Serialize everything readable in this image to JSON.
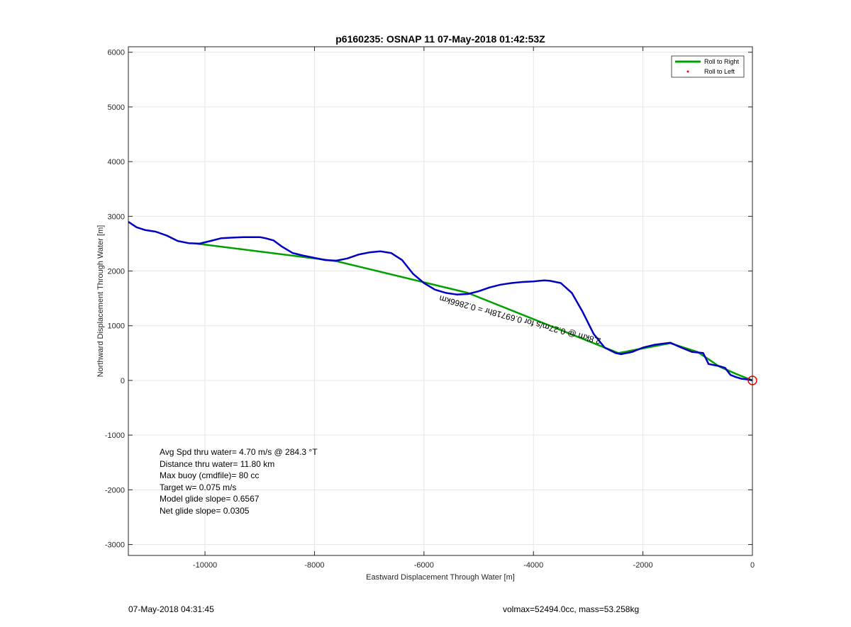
{
  "chart_data": {
    "type": "line",
    "title": "p6160235: OSNAP 11 07-May-2018 01:42:53Z",
    "xlabel": "Eastward Displacement Through Water [m]",
    "ylabel": "Northward Displacement Through Water [m]",
    "xlim": [
      -11400,
      0
    ],
    "ylim": [
      -3200,
      6100
    ],
    "xticks": [
      -10000,
      -8000,
      -6000,
      -4000,
      -2000,
      0
    ],
    "yticks": [
      -3000,
      -2000,
      -1000,
      0,
      1000,
      2000,
      3000,
      4000,
      5000,
      6000
    ],
    "grid": true,
    "legend_position": "top-right",
    "legend": [
      {
        "label": "Roll to Right",
        "color": "#00a000"
      },
      {
        "label": "Roll to Left",
        "color": "#ff0000"
      }
    ],
    "series": [
      {
        "name": "Roll to Right",
        "color": "#00a000",
        "x": [
          -10150,
          -7600,
          -5200,
          -2450,
          -1500,
          -1000,
          -600,
          -300,
          -100,
          0
        ],
        "y": [
          2500,
          2180,
          1600,
          500,
          680,
          520,
          250,
          120,
          40,
          0
        ]
      },
      {
        "color": "#0000c0",
        "x": [
          -11400,
          -11250,
          -11100,
          -10900,
          -10700,
          -10500,
          -10300,
          -10100,
          -9900,
          -9700,
          -9500,
          -9300,
          -9000,
          -8900,
          -8750,
          -8600,
          -8400,
          -8200,
          -8000,
          -7800,
          -7600,
          -7400,
          -7200,
          -7000,
          -6800,
          -6600,
          -6400,
          -6200,
          -6000,
          -5800,
          -5600,
          -5400,
          -5200,
          -5000,
          -4800,
          -4600,
          -4400,
          -4200,
          -4000,
          -3800,
          -3700,
          -3500,
          -3300,
          -3100,
          -2900,
          -2700,
          -2500,
          -2400,
          -2200,
          -2000,
          -1800,
          -1500,
          -1300,
          -1100,
          -900,
          -800,
          -600,
          -500,
          -400,
          -300,
          -200,
          -100,
          0
        ],
        "y": [
          2900,
          2800,
          2750,
          2720,
          2650,
          2550,
          2510,
          2500,
          2550,
          2600,
          2610,
          2620,
          2620,
          2600,
          2560,
          2450,
          2330,
          2280,
          2240,
          2200,
          2190,
          2230,
          2300,
          2340,
          2360,
          2330,
          2200,
          1950,
          1780,
          1660,
          1600,
          1570,
          1580,
          1630,
          1700,
          1750,
          1780,
          1800,
          1810,
          1830,
          1820,
          1780,
          1600,
          1250,
          850,
          600,
          500,
          480,
          520,
          600,
          650,
          690,
          600,
          520,
          500,
          300,
          260,
          230,
          100,
          60,
          30,
          20,
          0
        ]
      }
    ],
    "markers": [
      {
        "x": 0,
        "y": 0,
        "shape": "circle",
        "color": "#ff0000"
      }
    ],
    "rotated_annotation": "2.8km @ 0.27m/s for 0.69718hr = 0.2866km",
    "annotations": [
      "Avg Spd thru water=  4.70 m/s @ 284.3 °T",
      "Distance thru water= 11.80 km",
      "Max buoy (cmdfile)= 80 cc",
      "Target w= 0.075 m/s",
      "Model glide slope= 0.6567",
      "Net glide slope= 0.0305"
    ]
  },
  "footer": {
    "left": "07-May-2018 04:31:45",
    "right": "volmax=52494.0cc, mass=53.258kg"
  }
}
